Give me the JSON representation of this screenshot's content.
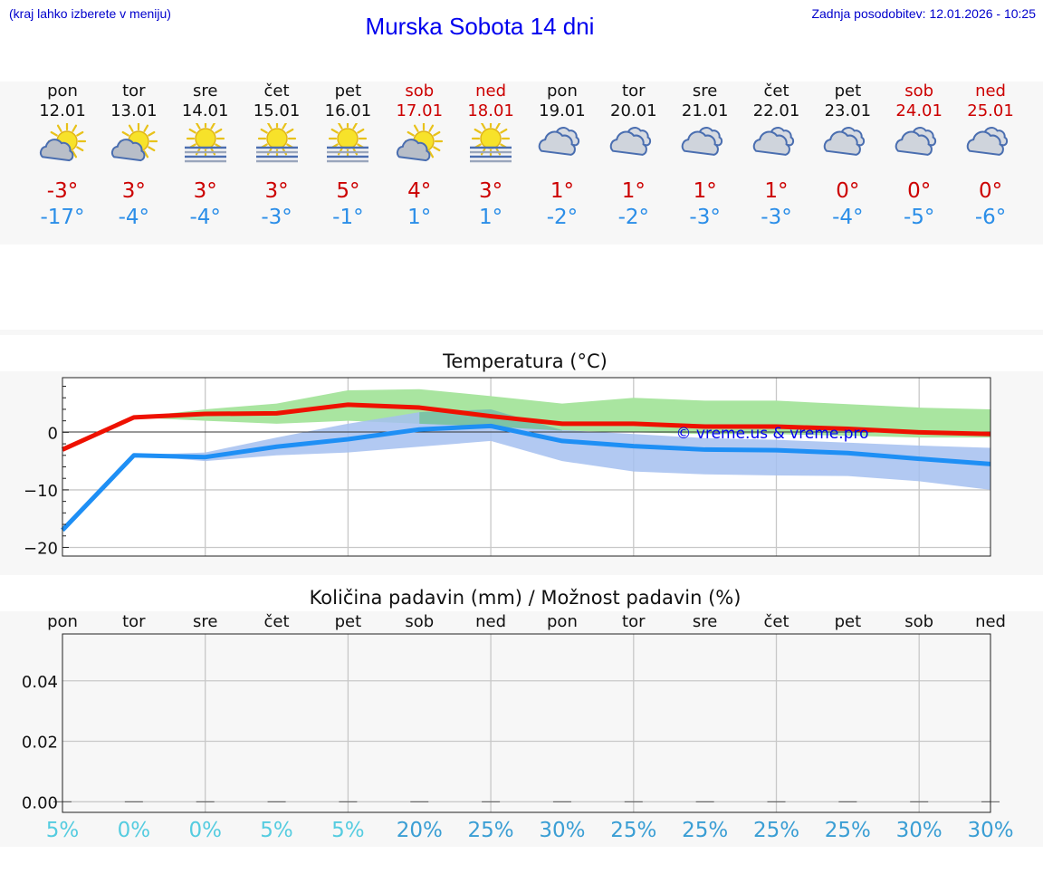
{
  "header": {
    "hint": "(kraj lahko izberete v meniju)",
    "title": "Murska Sobota 14 dni",
    "updated": "Zadnja posodobitev: 12.01.2026 - 10:25"
  },
  "colors": {
    "max_line": "#ee1100",
    "min_line": "#1e8ff5",
    "max_band": "#a9e5a0",
    "min_band": "#a5bff0",
    "overlap_band": "#7dc3a6",
    "weekend_text": "#cc0000",
    "pct_low": "#55cce0",
    "pct_high": "#3a9ed4"
  },
  "days": [
    {
      "name": "pon",
      "date": "12.01",
      "weekend": false,
      "icon": "sun-cloud-icon",
      "max": "-3°",
      "min": "-17°"
    },
    {
      "name": "tor",
      "date": "13.01",
      "weekend": false,
      "icon": "sun-cloud-icon",
      "max": "3°",
      "min": "-4°"
    },
    {
      "name": "sre",
      "date": "14.01",
      "weekend": false,
      "icon": "sun-fog-icon",
      "max": "3°",
      "min": "-4°"
    },
    {
      "name": "čet",
      "date": "15.01",
      "weekend": false,
      "icon": "sun-fog-icon",
      "max": "3°",
      "min": "-3°"
    },
    {
      "name": "pet",
      "date": "16.01",
      "weekend": false,
      "icon": "sun-fog-icon",
      "max": "5°",
      "min": "-1°"
    },
    {
      "name": "sob",
      "date": "17.01",
      "weekend": true,
      "icon": "sun-cloud-icon",
      "max": "4°",
      "min": "1°"
    },
    {
      "name": "ned",
      "date": "18.01",
      "weekend": true,
      "icon": "sun-fog-icon",
      "max": "3°",
      "min": "1°"
    },
    {
      "name": "pon",
      "date": "19.01",
      "weekend": false,
      "icon": "cloud-icon",
      "max": "1°",
      "min": "-2°"
    },
    {
      "name": "tor",
      "date": "20.01",
      "weekend": false,
      "icon": "cloud-icon",
      "max": "1°",
      "min": "-2°"
    },
    {
      "name": "sre",
      "date": "21.01",
      "weekend": false,
      "icon": "cloud-icon",
      "max": "1°",
      "min": "-3°"
    },
    {
      "name": "čet",
      "date": "22.01",
      "weekend": false,
      "icon": "cloud-icon",
      "max": "1°",
      "min": "-3°"
    },
    {
      "name": "pet",
      "date": "23.01",
      "weekend": false,
      "icon": "cloud-icon",
      "max": "0°",
      "min": "-4°"
    },
    {
      "name": "sob",
      "date": "24.01",
      "weekend": true,
      "icon": "cloud-icon",
      "max": "0°",
      "min": "-5°"
    },
    {
      "name": "ned",
      "date": "25.01",
      "weekend": true,
      "icon": "cloud-icon",
      "max": "0°",
      "min": "-6°"
    }
  ],
  "chart_data": [
    {
      "type": "line",
      "title": "Temperatura (°C)",
      "ylabel": "°C",
      "ylim": [
        -21.5,
        9.5
      ],
      "yticks": [
        0,
        -10,
        -20
      ],
      "ytick_labels": [
        "0",
        "−10",
        "−20"
      ],
      "x": [
        0,
        1,
        2,
        3,
        4,
        5,
        6,
        7,
        8,
        9,
        10,
        11,
        12,
        13
      ],
      "series": [
        {
          "name": "max",
          "values": [
            -3,
            2.6,
            3.2,
            3.3,
            4.8,
            4.3,
            2.8,
            1.5,
            1.5,
            1.0,
            1.0,
            0.6,
            0.0,
            -0.3
          ]
        },
        {
          "name": "min",
          "values": [
            -17,
            -4.0,
            -4.3,
            -2.5,
            -1.2,
            0.5,
            1.1,
            -1.5,
            -2.4,
            -3.0,
            -3.1,
            -3.6,
            -4.6,
            -5.5
          ]
        }
      ],
      "bands": [
        {
          "name": "max-range",
          "low": [
            null,
            2.6,
            2.0,
            1.5,
            2.0,
            1.5,
            1.0,
            0.3,
            0.0,
            -0.3,
            -0.3,
            -0.6,
            -0.9,
            -0.9
          ],
          "high": [
            null,
            2.6,
            4.0,
            5.0,
            7.3,
            7.5,
            6.3,
            5.0,
            6.0,
            5.5,
            5.5,
            4.9,
            4.3,
            4.0
          ]
        },
        {
          "name": "min-range",
          "low": [
            null,
            -4.0,
            -5.0,
            -4.0,
            -3.5,
            -2.5,
            -1.5,
            -5.0,
            -6.8,
            -7.3,
            -7.5,
            -7.6,
            -8.5,
            -10.0
          ],
          "high": [
            null,
            -4.0,
            -3.5,
            -0.9,
            1.5,
            3.5,
            4.0,
            0.4,
            -0.3,
            -1.0,
            -1.3,
            -1.8,
            -2.3,
            -2.7
          ]
        }
      ],
      "annotation": "© vreme.us & vreme.pro"
    },
    {
      "type": "bar",
      "title": "Količina padavin (mm) / Možnost padavin (%)",
      "ylabel": "mm",
      "ylim": [
        -0.0035,
        0.0555
      ],
      "yticks": [
        0.0,
        0.02,
        0.04
      ],
      "ytick_labels": [
        "0.00",
        "0.02",
        "0.04"
      ],
      "categories": [
        "pon",
        "tor",
        "sre",
        "čet",
        "pet",
        "sob",
        "ned",
        "pon",
        "tor",
        "sre",
        "čet",
        "pet",
        "sob",
        "ned"
      ],
      "values": [
        0,
        0,
        0,
        0,
        0,
        0,
        0,
        0,
        0,
        0,
        0,
        0,
        0,
        0
      ],
      "chance": [
        "5%",
        "0%",
        "0%",
        "5%",
        "5%",
        "20%",
        "25%",
        "30%",
        "25%",
        "25%",
        "25%",
        "25%",
        "30%",
        "30%"
      ]
    }
  ]
}
